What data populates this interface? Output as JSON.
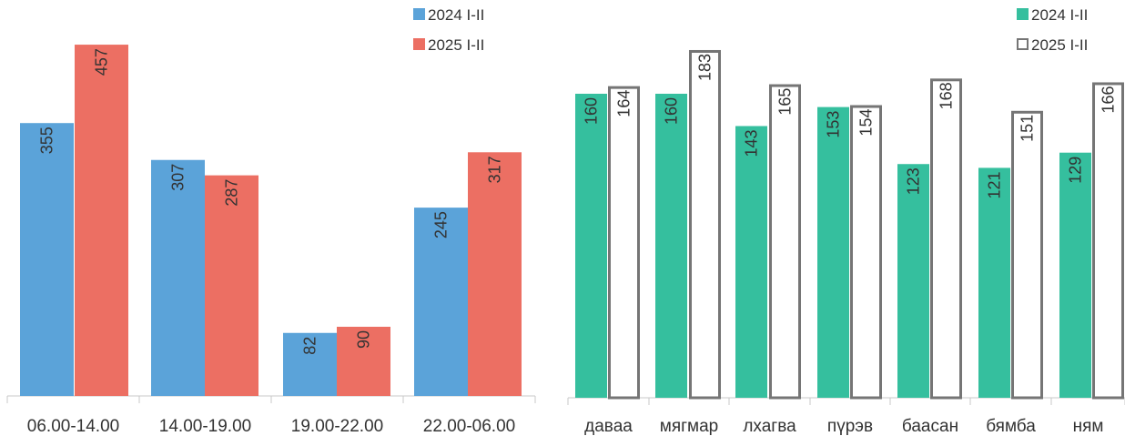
{
  "chart_data": [
    {
      "type": "bar",
      "categories": [
        "06.00-14.00",
        "14.00-19.00",
        "19.00-22.00",
        "22.00-06.00"
      ],
      "series": [
        {
          "name": "2024 I-II",
          "values": [
            355,
            307,
            82,
            245
          ],
          "color": "#5BA3D9"
        },
        {
          "name": "2025 I-II",
          "values": [
            457,
            287,
            90,
            317
          ],
          "color": "#EC6F63"
        }
      ],
      "ylim": [
        0,
        480
      ],
      "legend": "top-right",
      "grid": false,
      "data_labels": "inside-end-rotated"
    },
    {
      "type": "bar",
      "categories": [
        "даваа",
        "мягмар",
        "лхагва",
        "пүрэв",
        "баасан",
        "бямба",
        "ням"
      ],
      "series": [
        {
          "name": "2024 I-II",
          "values": [
            160,
            160,
            143,
            153,
            123,
            121,
            129
          ],
          "color": "#35BF9E"
        },
        {
          "name": "2025 I-II",
          "values": [
            164,
            183,
            165,
            154,
            168,
            151,
            166
          ],
          "color": "#FFFFFF",
          "outline": "#757575"
        }
      ],
      "ylim": [
        0,
        200
      ],
      "legend": "top-right",
      "grid": false,
      "data_labels": "inside-end-rotated"
    }
  ]
}
